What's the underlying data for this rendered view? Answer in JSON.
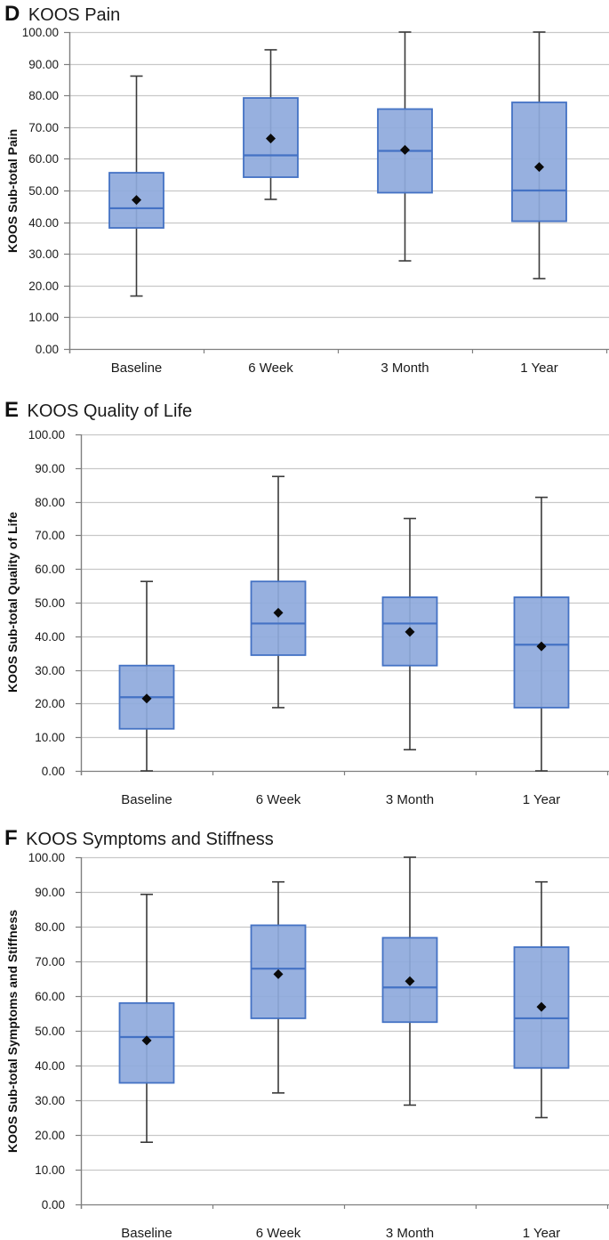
{
  "page": {
    "background": "#ffffff"
  },
  "colors": {
    "box_fill": "#8EA9DC",
    "box_border": "#4472C4",
    "median_line": "#4472C4",
    "whisker": "#3A3A3A",
    "mean_marker": "#0A0A0A",
    "gridline": "#C8C8C8",
    "axis": "#7F7F7F",
    "text": "#1A1A1A"
  },
  "y_axis": {
    "min": 0,
    "max": 100,
    "step": 10,
    "ticks": [
      {
        "value": 100,
        "label": "100.00"
      },
      {
        "value": 90,
        "label": "90.00"
      },
      {
        "value": 80,
        "label": "80.00"
      },
      {
        "value": 70,
        "label": "70.00"
      },
      {
        "value": 60,
        "label": "60.00"
      },
      {
        "value": 50,
        "label": "50.00"
      },
      {
        "value": 40,
        "label": "40.00"
      },
      {
        "value": 30,
        "label": "30.00"
      },
      {
        "value": 20,
        "label": "20.00"
      },
      {
        "value": 10,
        "label": "10.00"
      },
      {
        "value": 0,
        "label": "0.00"
      }
    ]
  },
  "chart_data": [
    {
      "type": "box",
      "panel_letter": "D",
      "title": "KOOS Pain",
      "ylabel": "KOOS Sub-total Pain",
      "ylim": [
        0,
        100
      ],
      "grid": true,
      "categories": [
        "Baseline",
        "6 Week",
        "3 Month",
        "1 Year"
      ],
      "boxes": [
        {
          "category": "Baseline",
          "whisker_low": 16.7,
          "q1": 38.2,
          "median": 44.4,
          "q3": 55.6,
          "whisker_high": 86.1,
          "mean": 47.0
        },
        {
          "category": "6 Week",
          "whisker_low": 47.2,
          "q1": 54.2,
          "median": 61.1,
          "q3": 79.2,
          "whisker_high": 94.4,
          "mean": 66.4
        },
        {
          "category": "3 Month",
          "whisker_low": 27.8,
          "q1": 49.3,
          "median": 62.5,
          "q3": 75.7,
          "whisker_high": 100,
          "mean": 62.8
        },
        {
          "category": "1 Year",
          "whisker_low": 22.2,
          "q1": 40.3,
          "median": 50.0,
          "q3": 77.8,
          "whisker_high": 100,
          "mean": 57.4
        }
      ]
    },
    {
      "type": "box",
      "panel_letter": "E",
      "title": "KOOS Quality of Life",
      "ylabel": "KOOS Sub-total Quality of Life",
      "ylim": [
        0,
        100
      ],
      "grid": true,
      "categories": [
        "Baseline",
        "6 Week",
        "3 Month",
        "1 Year"
      ],
      "boxes": [
        {
          "category": "Baseline",
          "whisker_low": 0,
          "q1": 12.5,
          "median": 21.9,
          "q3": 31.3,
          "whisker_high": 56.3,
          "mean": 21.5
        },
        {
          "category": "6 Week",
          "whisker_low": 18.8,
          "q1": 34.4,
          "median": 43.8,
          "q3": 56.3,
          "whisker_high": 87.5,
          "mean": 47.0
        },
        {
          "category": "3 Month",
          "whisker_low": 6.3,
          "q1": 31.3,
          "median": 43.8,
          "q3": 51.6,
          "whisker_high": 75.0,
          "mean": 41.3
        },
        {
          "category": "1 Year",
          "whisker_low": 0,
          "q1": 18.8,
          "median": 37.5,
          "q3": 51.6,
          "whisker_high": 81.3,
          "mean": 37.0
        }
      ]
    },
    {
      "type": "box",
      "panel_letter": "F",
      "title": "KOOS Symptoms and Stiffness",
      "ylabel": "KOOS Sub-total Symptoms and Stiffness",
      "ylim": [
        0,
        100
      ],
      "grid": true,
      "categories": [
        "Baseline",
        "6 Week",
        "3 Month",
        "1 Year"
      ],
      "boxes": [
        {
          "category": "Baseline",
          "whisker_low": 17.9,
          "q1": 35.0,
          "median": 48.2,
          "q3": 58.0,
          "whisker_high": 89.3,
          "mean": 47.2
        },
        {
          "category": "6 Week",
          "whisker_low": 32.1,
          "q1": 53.6,
          "median": 67.9,
          "q3": 80.4,
          "whisker_high": 92.9,
          "mean": 66.3
        },
        {
          "category": "3 Month",
          "whisker_low": 28.6,
          "q1": 52.5,
          "median": 62.5,
          "q3": 76.8,
          "whisker_high": 100,
          "mean": 64.3
        },
        {
          "category": "1 Year",
          "whisker_low": 25.0,
          "q1": 39.3,
          "median": 53.6,
          "q3": 74.1,
          "whisker_high": 92.9,
          "mean": 56.9
        }
      ]
    }
  ]
}
